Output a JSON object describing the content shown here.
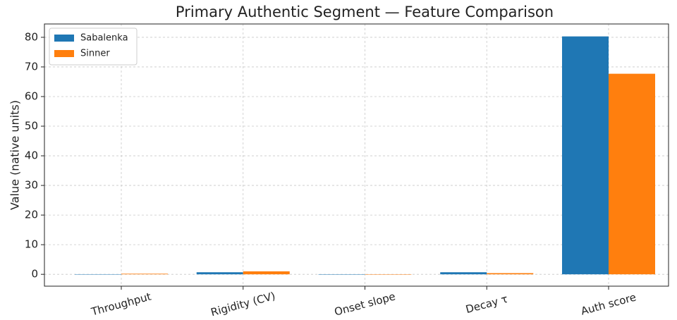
{
  "chart_data": {
    "type": "bar",
    "title": "Primary Authentic Segment — Feature Comparison",
    "y_label": "Value (native units)",
    "categories": [
      "Throughput",
      "Rigidity (CV)",
      "Onset slope",
      "Decay τ",
      "Auth score"
    ],
    "series": [
      {
        "name": "Sabalenka",
        "color": "#1f77b4",
        "values": [
          0.05,
          0.7,
          0.02,
          0.7,
          80.3
        ]
      },
      {
        "name": "Sinner",
        "color": "#ff7f0e",
        "values": [
          0.2,
          1.0,
          -0.1,
          0.4,
          67.7
        ]
      }
    ],
    "ylim": [
      -4,
      84.5
    ],
    "yticks": [
      0,
      10,
      20,
      30,
      40,
      50,
      60,
      70,
      80
    ],
    "grid": true,
    "legend": "upper left"
  }
}
